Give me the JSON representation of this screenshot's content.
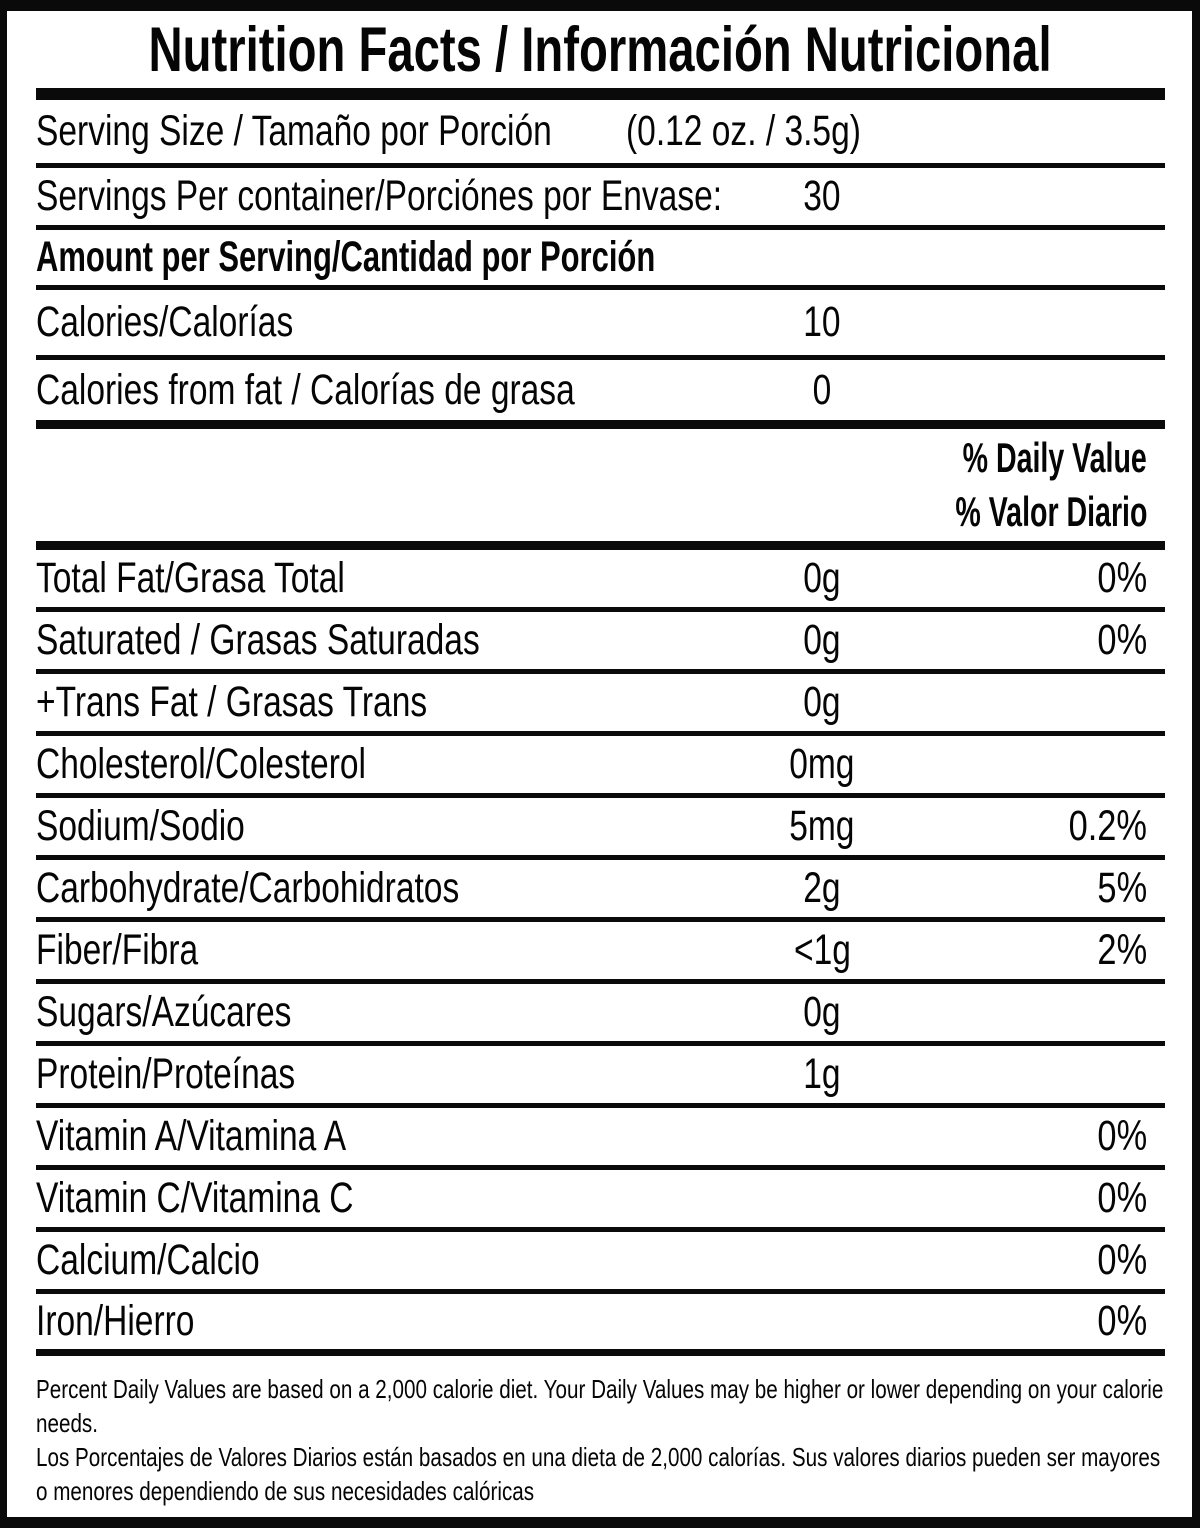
{
  "label": {
    "title": "Nutrition Facts / Información Nutricional",
    "daily_value_header_en": "% Daily Value",
    "daily_value_header_es": "% Valor Diario",
    "rows_top": [
      {
        "id": "serving-size",
        "label": "Serving Size / Tamaño por Porción",
        "value": "(0.12 oz. / 3.5g)",
        "percent": ""
      },
      {
        "id": "servings-per-container",
        "label": "Servings Per container/Porciónes por Envase:",
        "value": "30",
        "percent": ""
      },
      {
        "id": "amount-per-serving",
        "label": "Amount per Serving/Cantidad por Porción",
        "value": "",
        "percent": ""
      },
      {
        "id": "calories",
        "label": "Calories/Calorías",
        "value": "10",
        "percent": ""
      },
      {
        "id": "calories-from-fat",
        "label": "Calories from fat / Calorías de grasa",
        "value": "0",
        "percent": ""
      }
    ],
    "rows_main": [
      {
        "id": "total-fat",
        "label": "Total Fat/Grasa Total",
        "value": "0g",
        "percent": "0%"
      },
      {
        "id": "saturated-fat",
        "label": "Saturated / Grasas Saturadas",
        "value": "0g",
        "percent": "0%"
      },
      {
        "id": "trans-fat",
        "label": "+Trans Fat / Grasas Trans",
        "value": "0g",
        "percent": ""
      },
      {
        "id": "cholesterol",
        "label": "Cholesterol/Colesterol",
        "value": "0mg",
        "percent": ""
      },
      {
        "id": "sodium",
        "label": "Sodium/Sodio",
        "value": "5mg",
        "percent": "0.2%"
      },
      {
        "id": "carbohydrate",
        "label": "Carbohydrate/Carbohidratos",
        "value": "2g",
        "percent": "5%"
      },
      {
        "id": "fiber",
        "label": "Fiber/Fibra",
        "value": "<1g",
        "percent": "2%"
      },
      {
        "id": "sugars",
        "label": "Sugars/Azúcares",
        "value": "0g",
        "percent": ""
      },
      {
        "id": "protein",
        "label": "Protein/Proteínas",
        "value": "1g",
        "percent": ""
      },
      {
        "id": "vitamin-a",
        "label": "Vitamin A/Vitamina A",
        "value": "",
        "percent": "0%"
      },
      {
        "id": "vitamin-c",
        "label": "Vitamin C/Vitamina C",
        "value": "",
        "percent": "0%"
      },
      {
        "id": "calcium",
        "label": "Calcium/Calcio",
        "value": "",
        "percent": "0%"
      },
      {
        "id": "iron",
        "label": "Iron/Hierro",
        "value": "",
        "percent": "0%"
      }
    ],
    "footnote_en": "Percent Daily Values are based on a 2,000 calorie diet. Your Daily Values may be higher or lower depending on your calorie needs.",
    "footnote_es": "Los Porcentajes de Valores Diarios están basados en una dieta de 2,000 calorías. Sus valores diarios pueden ser mayores o menores dependiendo de sus necesidades calóricas"
  }
}
